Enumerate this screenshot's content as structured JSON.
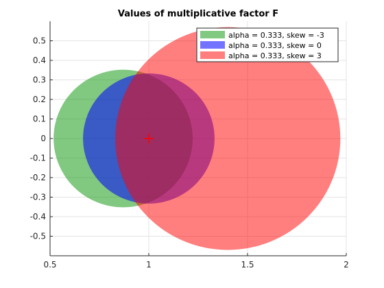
{
  "chart_data": {
    "type": "scatter",
    "title": "Values of multiplicative factor F",
    "xlabel": "",
    "ylabel": "",
    "xlim": [
      0.5,
      2.0
    ],
    "ylim": [
      -0.6,
      0.6
    ],
    "x_ticks": [
      0.5,
      1,
      1.5,
      2
    ],
    "x_tick_labels": [
      "0.5",
      "1",
      "1.5",
      "2"
    ],
    "y_ticks": [
      0.5,
      0.4,
      0.3,
      0.2,
      0.1,
      0,
      -0.1,
      -0.2,
      -0.3,
      -0.4,
      -0.5
    ],
    "y_tick_labels": [
      "0.5",
      "0.4",
      "0.3",
      "0.2",
      "0.1",
      "0",
      "-0.1",
      "-0.2",
      "-0.3",
      "-0.4",
      "-0.5"
    ],
    "grid": true,
    "legend_position": "top-right",
    "series": [
      {
        "name": "alpha = 0.333, skew = -3",
        "center": [
          0.87,
          0.0
        ],
        "radius": 0.352,
        "color": "#1a9a1a",
        "opacity": 0.55
      },
      {
        "name": "alpha = 0.333, skew = 0",
        "center": [
          1.0,
          0.0
        ],
        "radius": 0.333,
        "color": "#0000ff",
        "opacity": 0.55
      },
      {
        "name": "alpha = 0.333, skew = 3",
        "center": [
          1.4,
          0.0
        ],
        "radius": 0.57,
        "color": "#ff0000",
        "opacity": 0.5
      }
    ],
    "marker": {
      "x": 1.0,
      "y": 0.0,
      "symbol": "+",
      "color": "#ff0000"
    }
  }
}
